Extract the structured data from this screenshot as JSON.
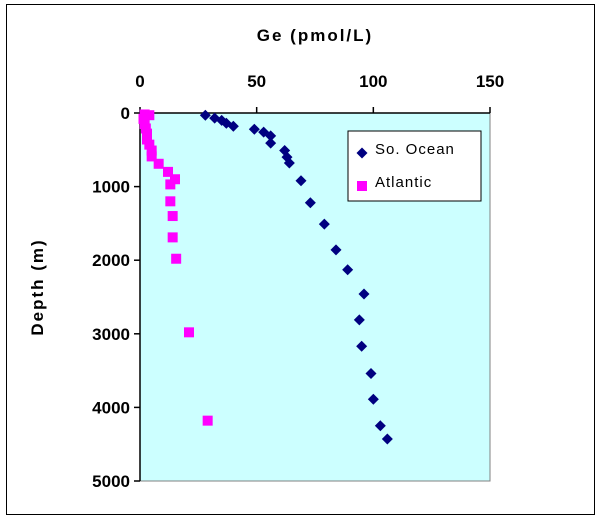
{
  "chart_data": {
    "type": "scatter",
    "title": "",
    "xlabel": "Ge (pmol/L)",
    "ylabel": "Depth (m)",
    "xlim": [
      0,
      150
    ],
    "ylim": [
      0,
      5000
    ],
    "y_inverted": true,
    "x_axis_position": "top",
    "x_ticks": [
      "0",
      "50",
      "100",
      "150"
    ],
    "y_ticks": [
      "0",
      "1000",
      "2000",
      "3000",
      "4000",
      "5000"
    ],
    "grid": false,
    "legend_position": "top-right",
    "plot_background": "#ccffff",
    "series": [
      {
        "name": "So. Ocean",
        "marker": "diamond",
        "color": "#000080",
        "points": [
          {
            "x": 28,
            "y": 30
          },
          {
            "x": 32,
            "y": 70
          },
          {
            "x": 35,
            "y": 100
          },
          {
            "x": 37,
            "y": 140
          },
          {
            "x": 40,
            "y": 180
          },
          {
            "x": 49,
            "y": 220
          },
          {
            "x": 53,
            "y": 260
          },
          {
            "x": 56,
            "y": 310
          },
          {
            "x": 56,
            "y": 410
          },
          {
            "x": 62,
            "y": 510
          },
          {
            "x": 63,
            "y": 600
          },
          {
            "x": 64,
            "y": 680
          },
          {
            "x": 69,
            "y": 920
          },
          {
            "x": 73,
            "y": 1220
          },
          {
            "x": 79,
            "y": 1510
          },
          {
            "x": 84,
            "y": 1860
          },
          {
            "x": 89,
            "y": 2130
          },
          {
            "x": 96,
            "y": 2460
          },
          {
            "x": 94,
            "y": 2810
          },
          {
            "x": 95,
            "y": 3170
          },
          {
            "x": 99,
            "y": 3540
          },
          {
            "x": 100,
            "y": 3890
          },
          {
            "x": 103,
            "y": 4250
          },
          {
            "x": 106,
            "y": 4430
          }
        ]
      },
      {
        "name": "Atlantic",
        "marker": "square",
        "color": "#ff00ff",
        "points": [
          {
            "x": 2,
            "y": 20
          },
          {
            "x": 4,
            "y": 30
          },
          {
            "x": 1.5,
            "y": 80
          },
          {
            "x": 2,
            "y": 150
          },
          {
            "x": 2.5,
            "y": 210
          },
          {
            "x": 3,
            "y": 280
          },
          {
            "x": 3,
            "y": 360
          },
          {
            "x": 4,
            "y": 430
          },
          {
            "x": 5,
            "y": 510
          },
          {
            "x": 5,
            "y": 590
          },
          {
            "x": 8,
            "y": 690
          },
          {
            "x": 12,
            "y": 800
          },
          {
            "x": 15,
            "y": 900
          },
          {
            "x": 13,
            "y": 970
          },
          {
            "x": 13,
            "y": 1200
          },
          {
            "x": 14,
            "y": 1400
          },
          {
            "x": 14,
            "y": 1690
          },
          {
            "x": 15.5,
            "y": 1980
          },
          {
            "x": 21,
            "y": 2980
          },
          {
            "x": 29,
            "y": 4180
          }
        ]
      }
    ]
  }
}
